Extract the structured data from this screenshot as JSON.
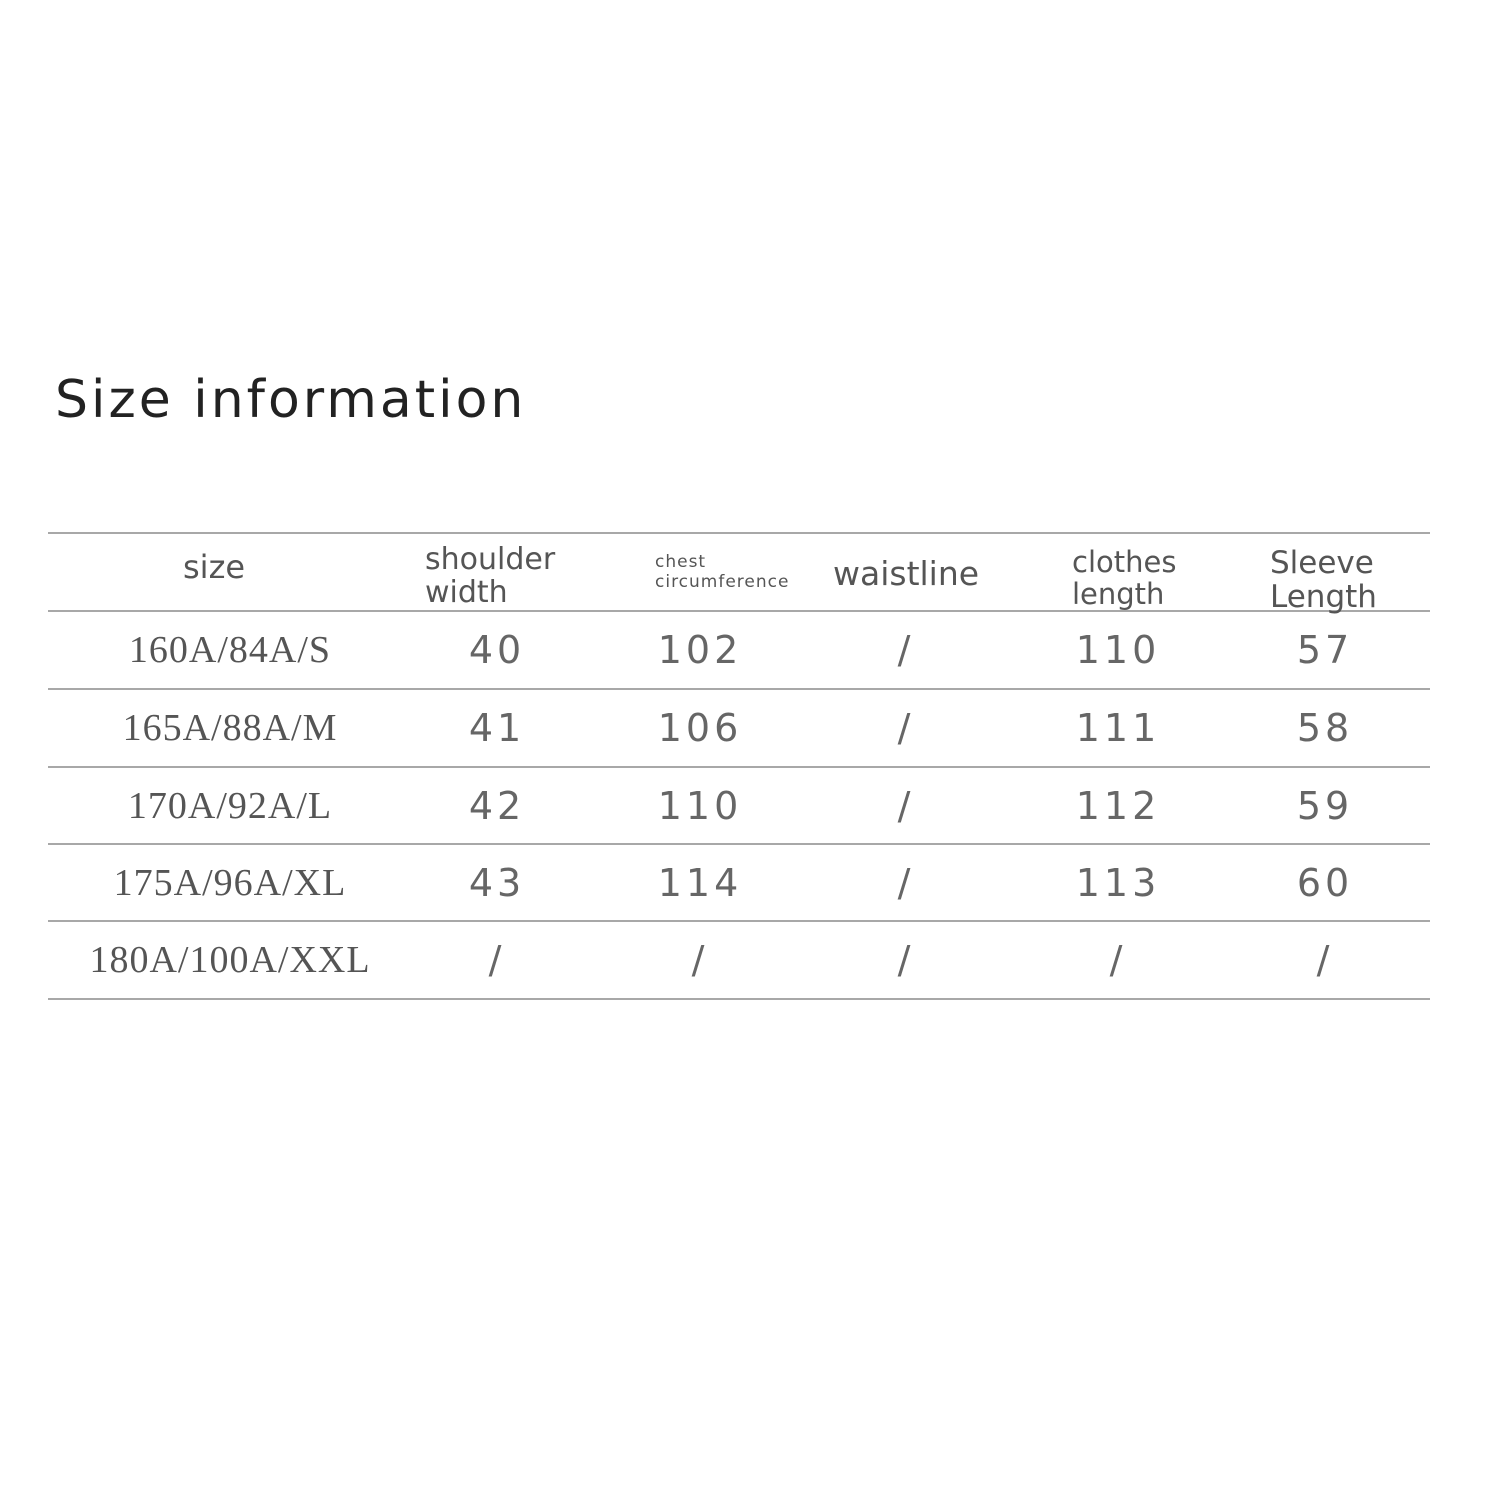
{
  "title": "Size information",
  "table": {
    "headers": [
      "size",
      "shoulder width",
      "chest circumference",
      "waistline",
      "clothes length",
      "Sleeve Length"
    ],
    "rows": [
      [
        "160A/84A/S",
        40,
        102,
        "/",
        110,
        57
      ],
      [
        "165A/88A/M",
        41,
        106,
        "/",
        111,
        58
      ],
      [
        "170A/92A/L",
        42,
        110,
        "/",
        112,
        59
      ],
      [
        "175A/96A/XL",
        43,
        114,
        "/",
        113,
        60
      ],
      [
        "180A/100A/XXL",
        "/",
        "/",
        "/",
        "/",
        "/"
      ]
    ]
  }
}
